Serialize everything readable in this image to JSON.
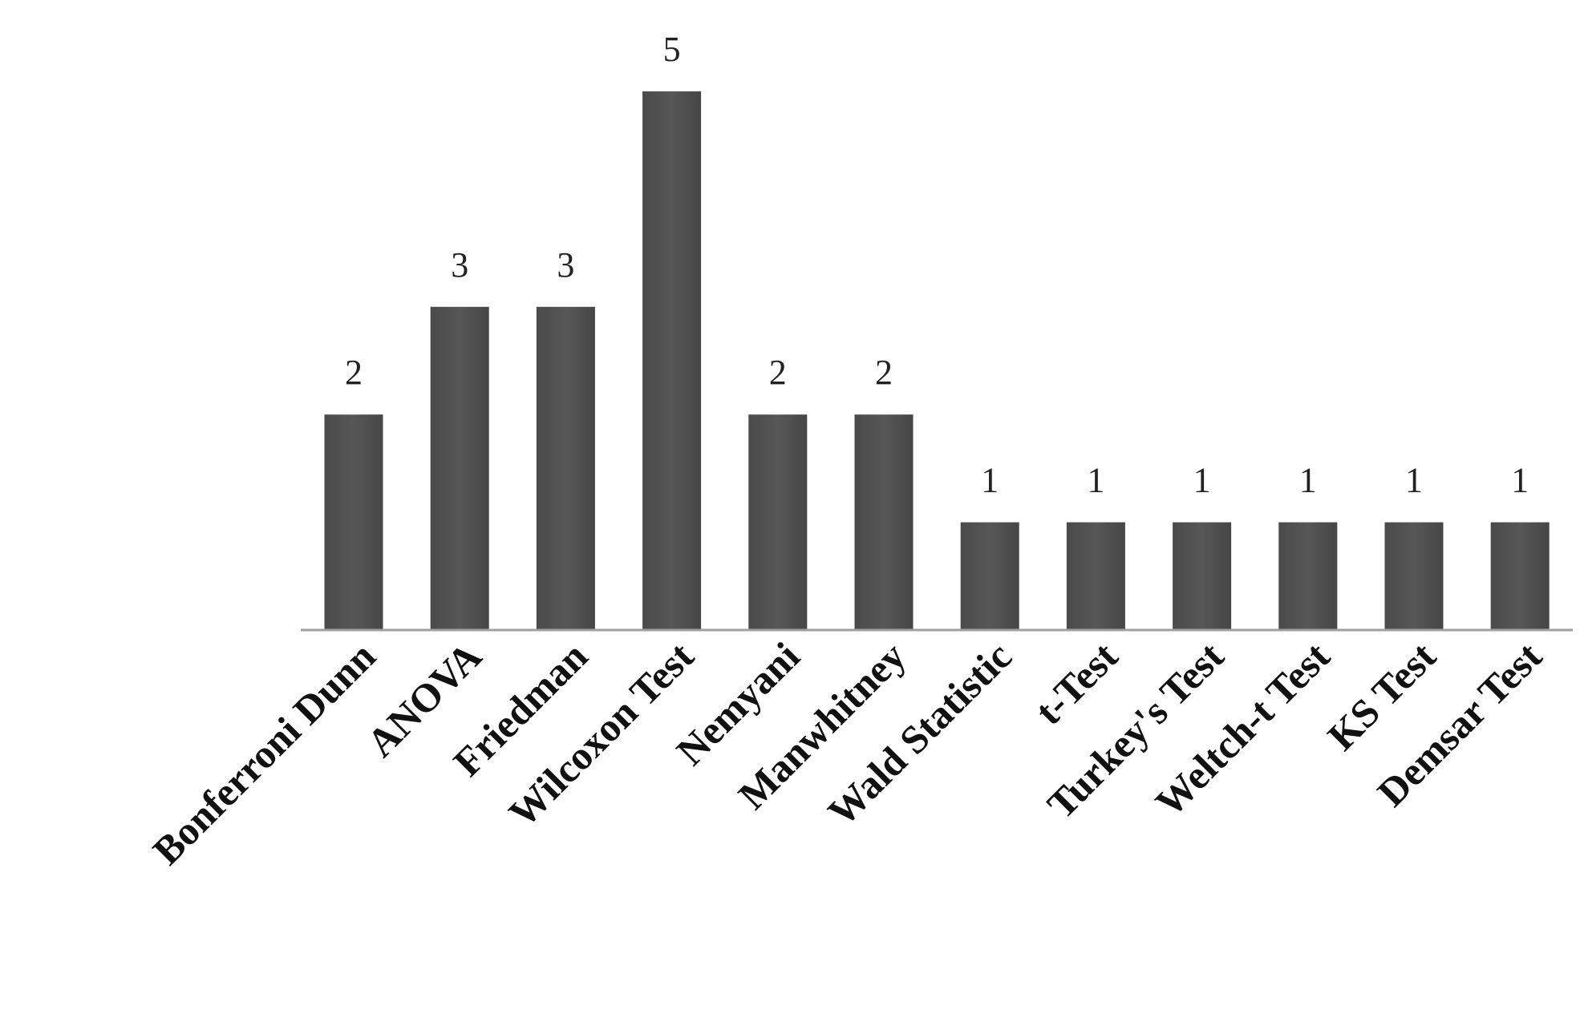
{
  "chart_data": {
    "type": "bar",
    "categories": [
      "Bonferroni Dunn",
      "ANOVA",
      "Friedman",
      "Wilcoxon Test",
      "Nemyani",
      "Manwhitney",
      "Wald Statistic",
      "t-Test",
      "Turkey's Test",
      "Weltch-t Test",
      "KS Test",
      "Demsar Test"
    ],
    "values": [
      2,
      3,
      3,
      5,
      2,
      2,
      1,
      1,
      1,
      1,
      1,
      1
    ],
    "color": "#575757"
  }
}
